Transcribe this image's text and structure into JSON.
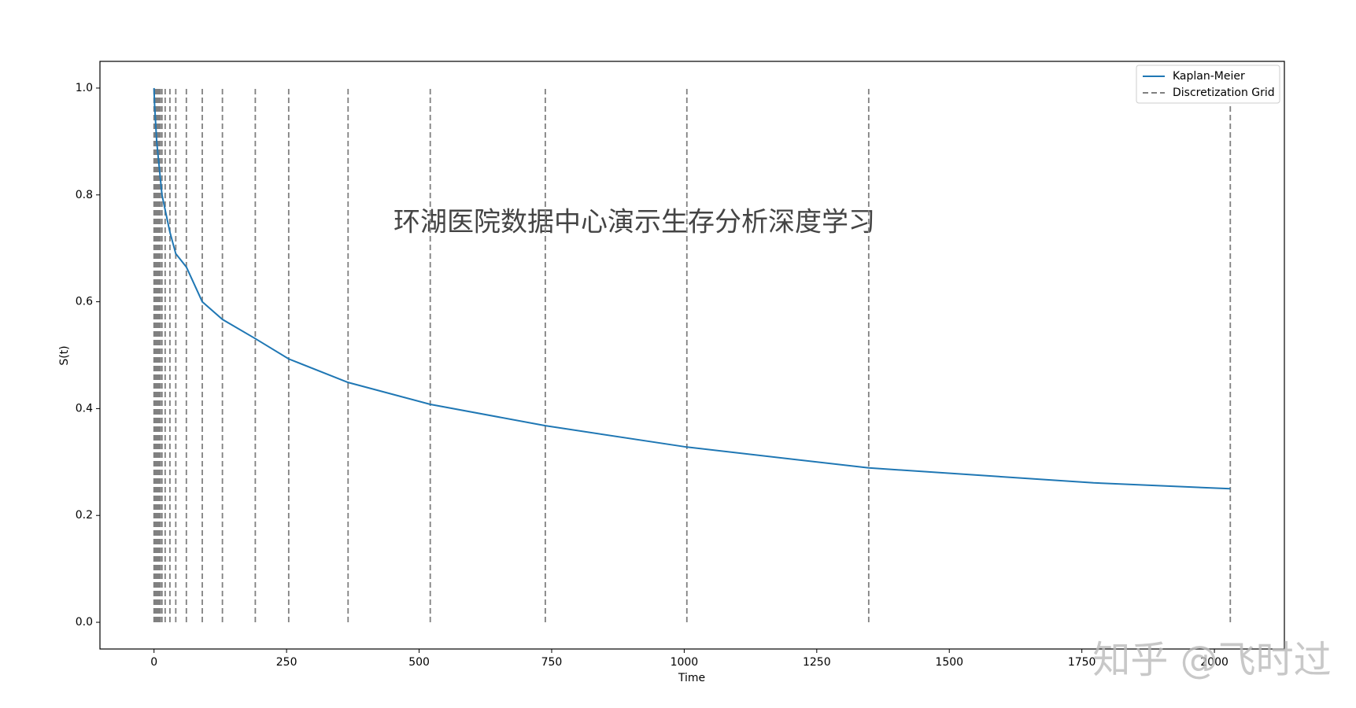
{
  "chart_data": {
    "type": "line",
    "annotation": "环湖医院数据中心演示生存分析深度学习",
    "watermark": "知乎 @飞时过",
    "xlabel": "Time",
    "ylabel": "S(t)",
    "xlim": [
      -102,
      2132
    ],
    "ylim": [
      -0.05,
      1.05
    ],
    "xticks": [
      0,
      250,
      500,
      750,
      1000,
      1250,
      1500,
      1750,
      2000
    ],
    "yticks": [
      {
        "value": 0,
        "label": "0.0"
      },
      {
        "value": 0.2,
        "label": "0.2"
      },
      {
        "value": 0.4,
        "label": "0.4"
      },
      {
        "value": 0.6,
        "label": "0.6"
      },
      {
        "value": 0.8,
        "label": "0.8"
      },
      {
        "value": 1,
        "label": "1.0"
      }
    ],
    "legend": "upper right",
    "series": [
      {
        "name": "Kaplan-Meier",
        "color": "#1f77b4",
        "x": [
          0,
          1,
          5,
          15,
          30,
          41,
          61,
          91,
          129,
          191,
          254,
          366,
          521,
          738,
          1005,
          1348,
          1772,
          2030
        ],
        "values": [
          1.0,
          0.97,
          0.9,
          0.8,
          0.73,
          0.69,
          0.665,
          0.6,
          0.567,
          0.531,
          0.493,
          0.449,
          0.408,
          0.368,
          0.328,
          0.289,
          0.261,
          0.25
        ]
      }
    ],
    "vlines": {
      "name": "Discretization Grid",
      "color": "#808080",
      "ymin": 0,
      "ymax": 1,
      "x": [
        0,
        1,
        2,
        3,
        4,
        5,
        6,
        7,
        8,
        10,
        12,
        15,
        21,
        30,
        41,
        61,
        91,
        129,
        191,
        254,
        366,
        521,
        738,
        1005,
        1348,
        2030
      ]
    }
  }
}
